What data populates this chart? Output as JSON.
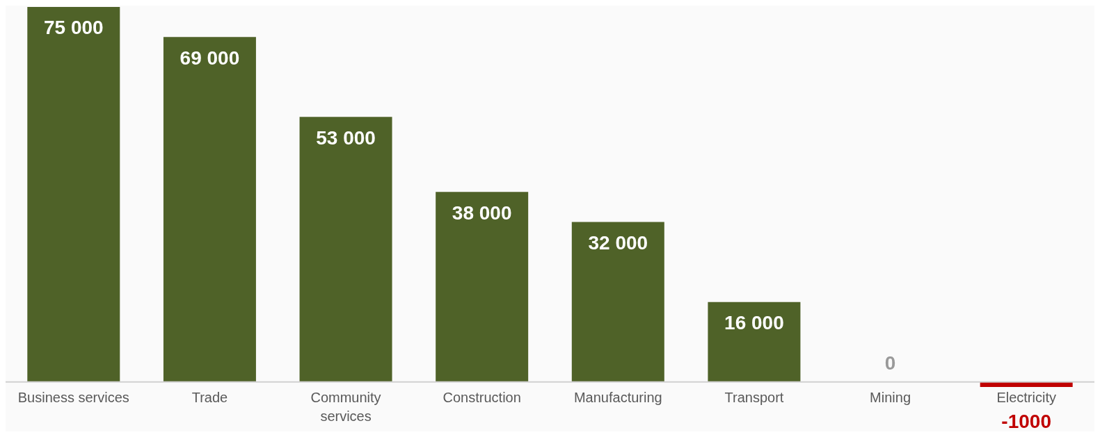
{
  "chart_data": {
    "type": "bar",
    "categories": [
      "Business services",
      "Trade",
      "Community services",
      "Construction",
      "Manufacturing",
      "Transport",
      "Mining",
      "Electricity"
    ],
    "values": [
      75000,
      69000,
      53000,
      38000,
      32000,
      16000,
      0,
      -1000
    ],
    "colors": [
      "#4f6228",
      "#4f6228",
      "#4f6228",
      "#4f6228",
      "#4f6228",
      "#4f6228",
      "#4f6228",
      "#c00000"
    ],
    "value_labels": [
      "75 000",
      "69 000",
      "53 000",
      "38 000",
      "32 000",
      "16 000",
      "0",
      "-1000"
    ],
    "grid": false,
    "legend": false
  }
}
